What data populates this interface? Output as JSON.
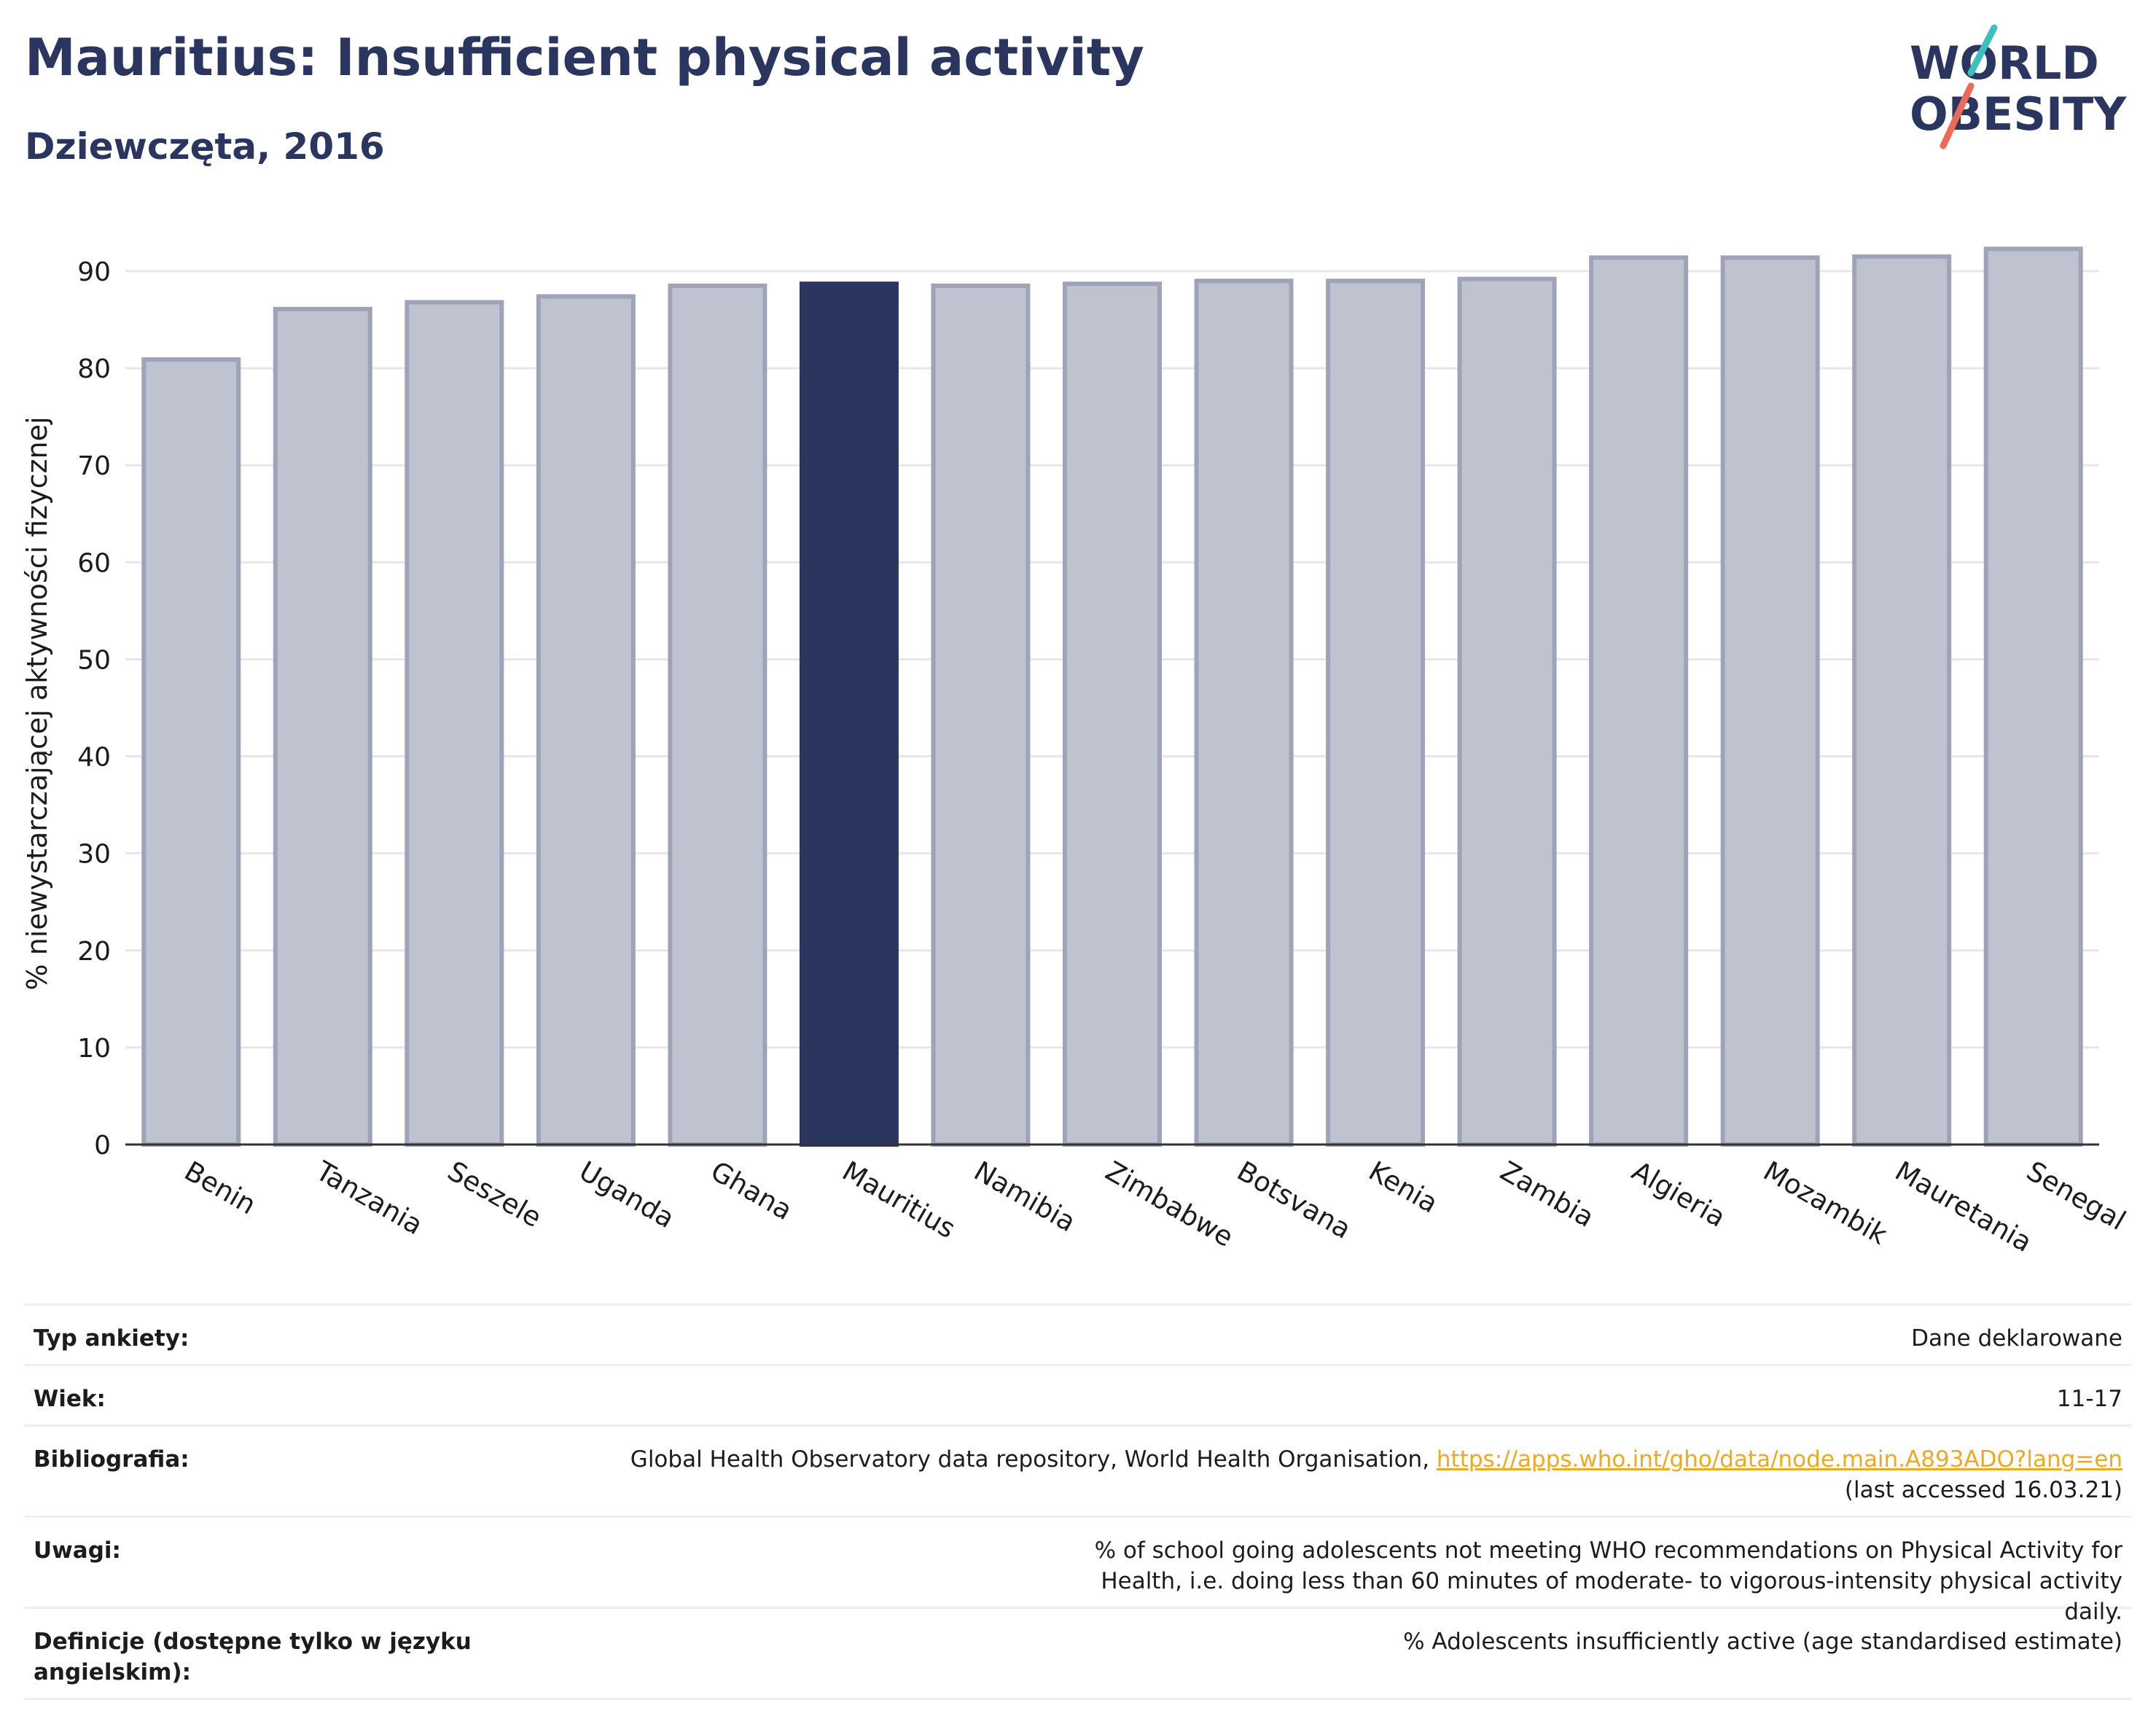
{
  "header": {
    "title": "Mauritius: Insufficient physical activity",
    "subtitle": "Dziewczęta, 2016"
  },
  "logo": {
    "line1": "WORLD",
    "line2": "OBESITY"
  },
  "colors": {
    "title": "#2a3560",
    "highlight_bar": "#2a3560",
    "other_bar_fill": "#bfc2cf",
    "other_bar_stroke": "#9ea3b8",
    "link": "#f0a81e",
    "logo_teal": "#3bbfbf",
    "logo_coral": "#ec6b58"
  },
  "chart_data": {
    "type": "bar",
    "ylabel": "% niewystarczającej aktywności fizycznej",
    "xlabel": "",
    "ylim": [
      0,
      95
    ],
    "yticks": [
      0,
      10,
      20,
      30,
      40,
      50,
      60,
      70,
      80,
      90
    ],
    "grid": true,
    "highlight": "Mauritius",
    "categories": [
      "Benin",
      "Tanzania",
      "Seszele",
      "Uganda",
      "Ghana",
      "Mauritius",
      "Namibia",
      "Zimbabwe",
      "Botsvana",
      "Kenia",
      "Zambia",
      "Algieria",
      "Mozambik",
      "Mauretania",
      "Senegal"
    ],
    "values": [
      80.9,
      86.1,
      86.8,
      87.4,
      88.5,
      88.7,
      88.5,
      88.7,
      89.0,
      89.0,
      89.2,
      91.4,
      91.4,
      91.5,
      92.3
    ]
  },
  "info": [
    {
      "label": "Typ ankiety:",
      "value": "Dane deklarowane"
    },
    {
      "label": "Wiek:",
      "value": "11-17"
    },
    {
      "label": "Bibliografia:",
      "value": "Global Health Observatory data repository, World Health Organisation, ",
      "link": "https://apps.who.int/gho/data/node.main.A893ADO?lang=en",
      "value_after": "(last accessed 16.03.21)"
    },
    {
      "label": "Uwagi:",
      "value": "% of school going adolescents not meeting WHO recommendations on Physical Activity for Health, i.e. doing less than 60 minutes of moderate- to vigorous-intensity physical activity daily."
    },
    {
      "label": "Definicje (dostępne tylko w języku angielskim):",
      "value": "% Adolescents insufficiently active (age standardised estimate)"
    }
  ]
}
